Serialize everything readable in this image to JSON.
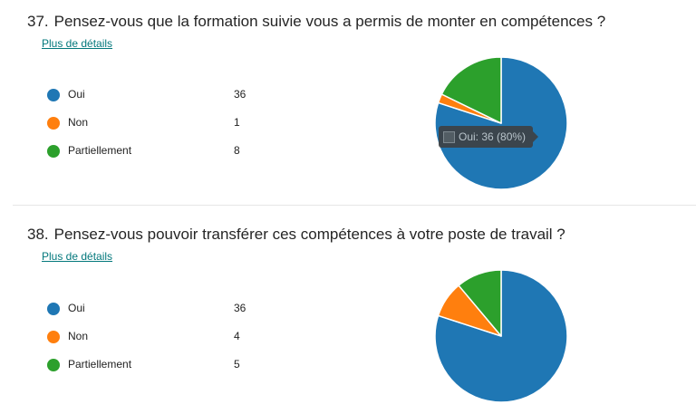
{
  "details_label": "Plus de détails",
  "colors": {
    "oui": "#1f77b4",
    "non": "#ff7f0e",
    "partiellement": "#2ca02c"
  },
  "questions": [
    {
      "number": "37.",
      "title": "Pensez-vous que la formation suivie vous a permis de monter en compétences ?",
      "legend": [
        {
          "label": "Oui",
          "count": "36"
        },
        {
          "label": "Non",
          "count": "1"
        },
        {
          "label": "Partiellement",
          "count": "8"
        }
      ],
      "tooltip": "Oui: 36 (80%)"
    },
    {
      "number": "38.",
      "title": "Pensez-vous pouvoir transférer ces compétences à votre poste de travail ?",
      "legend": [
        {
          "label": "Oui",
          "count": "36"
        },
        {
          "label": "Non",
          "count": "4"
        },
        {
          "label": "Partiellement",
          "count": "5"
        }
      ]
    }
  ],
  "chart_data": [
    {
      "type": "pie",
      "title": "Pensez-vous que la formation suivie vous a permis de monter en compétences ?",
      "categories": [
        "Oui",
        "Non",
        "Partiellement"
      ],
      "values": [
        36,
        1,
        8
      ],
      "colors": [
        "#1f77b4",
        "#ff7f0e",
        "#2ca02c"
      ]
    },
    {
      "type": "pie",
      "title": "Pensez-vous pouvoir transférer ces compétences à votre poste de travail ?",
      "categories": [
        "Oui",
        "Non",
        "Partiellement"
      ],
      "values": [
        36,
        4,
        5
      ],
      "colors": [
        "#1f77b4",
        "#ff7f0e",
        "#2ca02c"
      ]
    }
  ]
}
